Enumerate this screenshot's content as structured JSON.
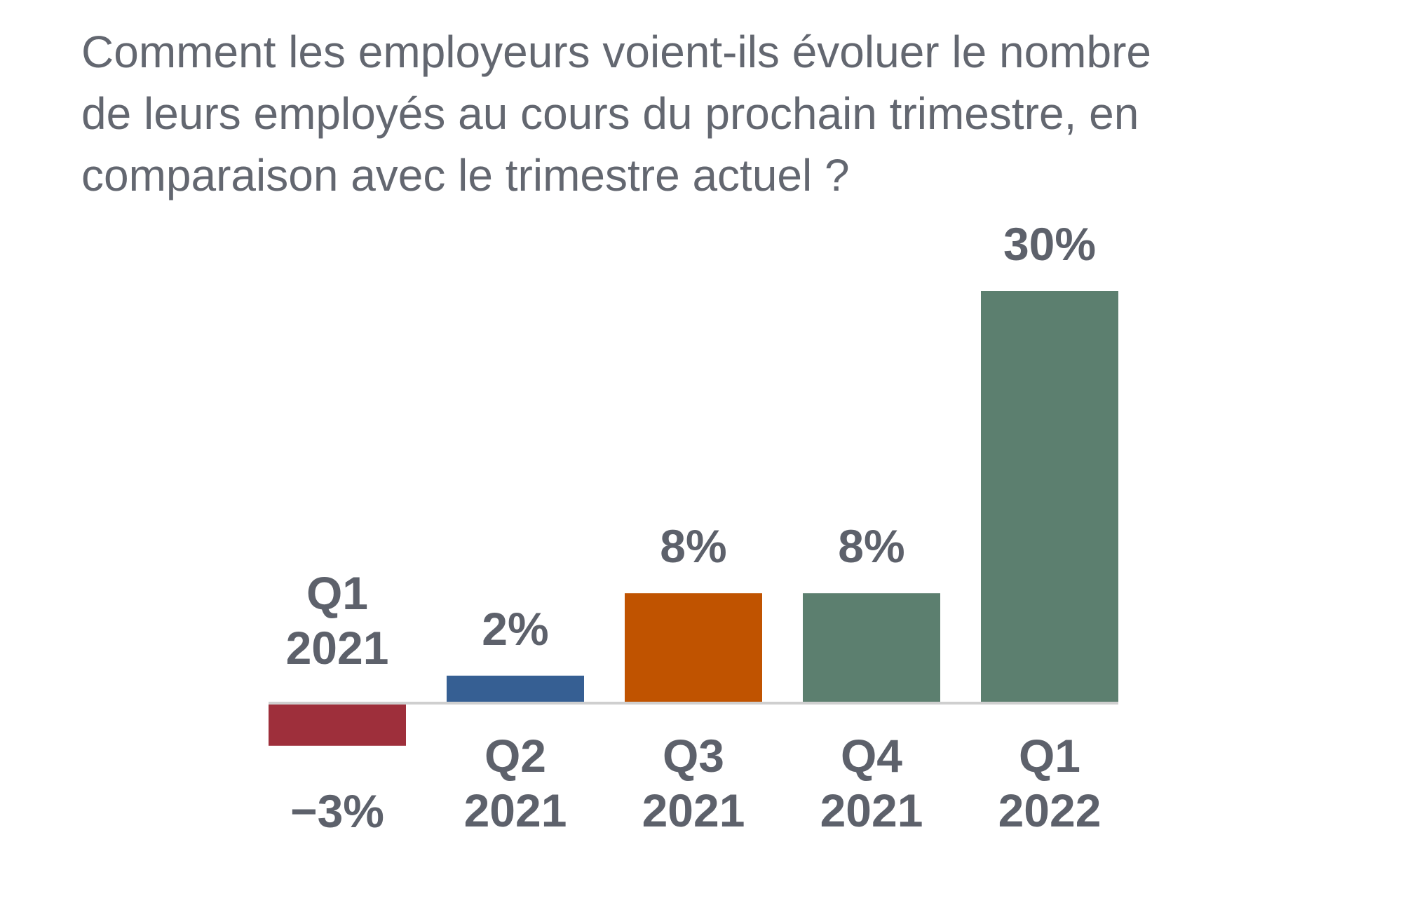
{
  "title_lines": [
    "Comment les employeurs voient-ils évoluer le nombre",
    "de leurs employés au cours du prochain trimestre, en",
    "comparaison avec le trimestre actuel ?"
  ],
  "colors": {
    "negative": "#9e2f3b",
    "blue": "#365f93",
    "orange": "#c05300",
    "green": "#5c7f6f",
    "text": "#5d616b",
    "axis": "#cfcfcf"
  },
  "chart_data": {
    "type": "bar",
    "title": "Comment les employeurs voient-ils évoluer le nombre de leurs employés au cours du prochain trimestre, en comparaison avec le trimestre actuel ?",
    "categories": [
      [
        "Q1",
        "2021"
      ],
      [
        "Q2",
        "2021"
      ],
      [
        "Q3",
        "2021"
      ],
      [
        "Q4",
        "2021"
      ],
      [
        "Q1",
        "2022"
      ]
    ],
    "values": [
      -3,
      2,
      8,
      8,
      30
    ],
    "value_labels": [
      "−3%",
      "2%",
      "8%",
      "8%",
      "30%"
    ],
    "bar_colors": [
      "#9e2f3b",
      "#365f93",
      "#c05300",
      "#5c7f6f",
      "#5c7f6f"
    ],
    "ylim": [
      -3,
      30
    ],
    "grid": false,
    "legend": "none"
  }
}
